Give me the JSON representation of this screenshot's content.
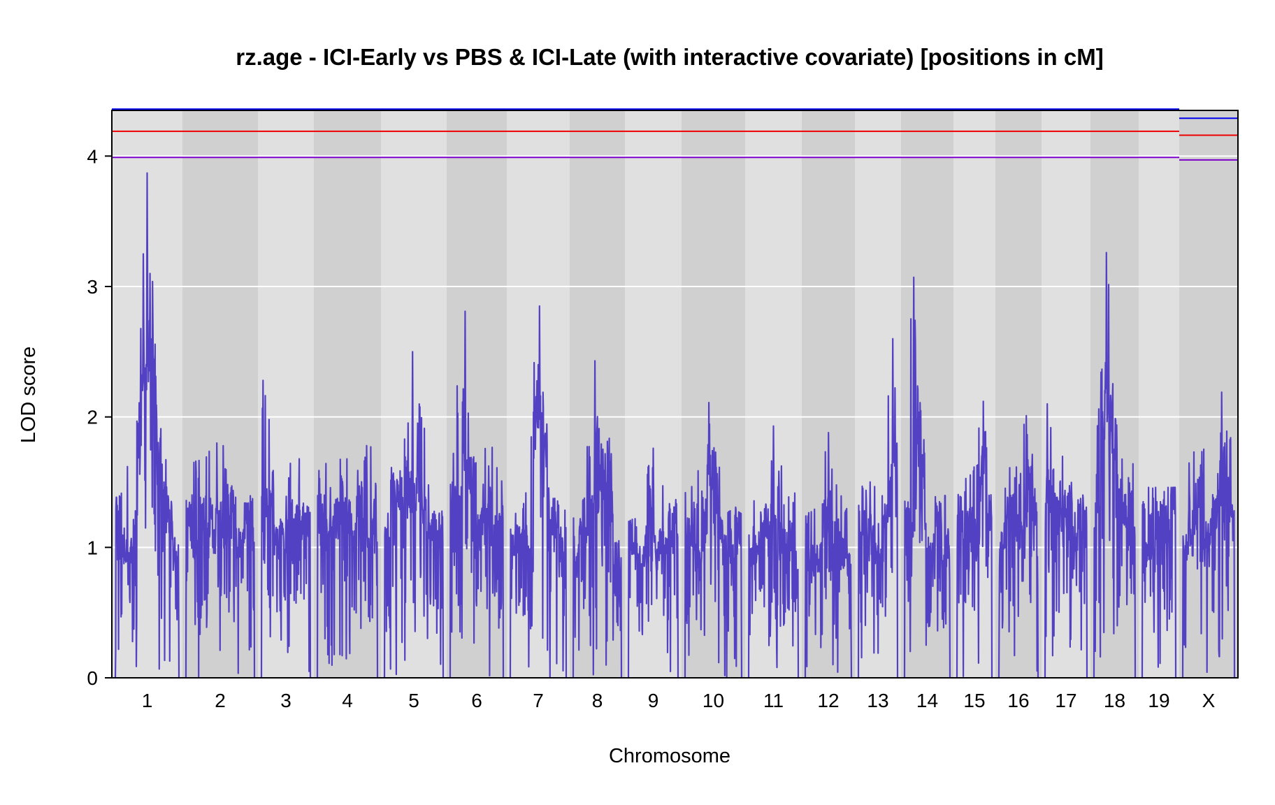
{
  "chart_data": {
    "type": "line",
    "title": "rz.age - ICI-Early vs PBS & ICI-Late (with interactive covariate) [positions in cM]",
    "xlabel": "Chromosome",
    "ylabel": "LOD score",
    "ylim": [
      0,
      4.35
    ],
    "y_ticks": [
      "0",
      "1",
      "2",
      "3",
      "4"
    ],
    "grid": true,
    "background_bands": "alternating gray per chromosome",
    "colors": {
      "lod_curve": "#5341c3",
      "threshold_blue": "#0000ee",
      "threshold_red": "#ee0000",
      "threshold_purple": "#7b00cc",
      "band_light": "#e0e0e0",
      "band_dark": "#d0d0d0"
    },
    "thresholds": {
      "autosome": [
        {
          "color": "blue",
          "value": 4.36
        },
        {
          "color": "red",
          "value": 4.19
        },
        {
          "color": "purple",
          "value": 3.99
        }
      ],
      "x_chromosome": [
        {
          "color": "blue",
          "value": 4.29
        },
        {
          "color": "red",
          "value": 4.16
        },
        {
          "color": "purple",
          "value": 3.97
        }
      ]
    },
    "chromosomes": [
      {
        "label": "1",
        "peak_lod": 3.87,
        "peak_cM": 0.5
      },
      {
        "label": "2",
        "peak_lod": 1.8,
        "peak_cM": 0.45
      },
      {
        "label": "3",
        "peak_lod": 2.28,
        "peak_cM": 0.03
      },
      {
        "label": "4",
        "peak_lod": 1.78,
        "peak_cM": 0.82
      },
      {
        "label": "5",
        "peak_lod": 2.5,
        "peak_cM": 0.48
      },
      {
        "label": "6",
        "peak_lod": 2.81,
        "peak_cM": 0.28
      },
      {
        "label": "7",
        "peak_lod": 2.85,
        "peak_cM": 0.52
      },
      {
        "label": "8",
        "peak_lod": 2.43,
        "peak_cM": 0.45
      },
      {
        "label": "9",
        "peak_lod": 1.76,
        "peak_cM": 0.5
      },
      {
        "label": "10",
        "peak_lod": 2.11,
        "peak_cM": 0.42
      },
      {
        "label": "11",
        "peak_lod": 1.93,
        "peak_cM": 0.5
      },
      {
        "label": "12",
        "peak_lod": 1.88,
        "peak_cM": 0.5
      },
      {
        "label": "13",
        "peak_lod": 2.6,
        "peak_cM": 0.88
      },
      {
        "label": "14",
        "peak_lod": 3.07,
        "peak_cM": 0.2
      },
      {
        "label": "15",
        "peak_lod": 2.12,
        "peak_cM": 0.75
      },
      {
        "label": "16",
        "peak_lod": 2.01,
        "peak_cM": 0.7
      },
      {
        "label": "17",
        "peak_lod": 2.1,
        "peak_cM": 0.05
      },
      {
        "label": "18",
        "peak_lod": 3.26,
        "peak_cM": 0.3
      },
      {
        "label": "19",
        "peak_lod": 1.46,
        "peak_cM": 0.4
      },
      {
        "label": "X",
        "peak_lod": 2.19,
        "peak_cM": 0.75
      }
    ]
  }
}
